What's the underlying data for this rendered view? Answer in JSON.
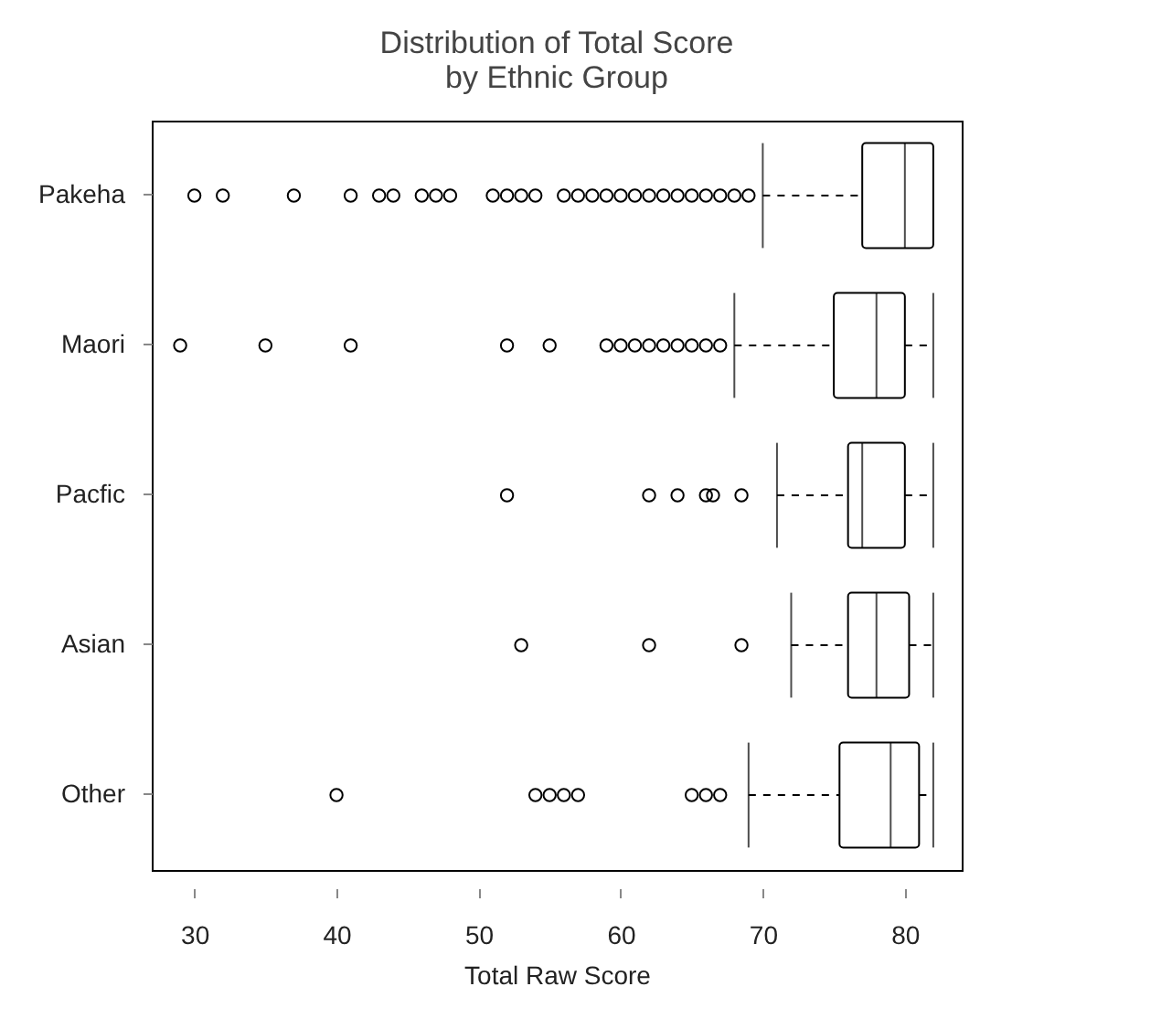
{
  "chart_data": {
    "type": "box",
    "orientation": "horizontal",
    "title": "Distribution of Total Score\nby Ethnic Group",
    "xlabel": "Total Raw Score",
    "categories": [
      "Pakeha",
      "Maori",
      "Pacfic",
      "Asian",
      "Other"
    ],
    "xlim": [
      27,
      84
    ],
    "xticks": [
      30,
      40,
      50,
      60,
      70,
      80
    ],
    "boxes": [
      {
        "low": 70,
        "q1": 77,
        "median": 80,
        "q3": 82,
        "high": 82,
        "outliers": [
          30,
          32,
          37,
          41,
          43,
          44,
          46,
          47,
          48,
          51,
          52,
          53,
          54,
          56,
          57,
          58,
          59,
          60,
          61,
          62,
          63,
          64,
          65,
          66,
          67,
          68,
          69
        ]
      },
      {
        "low": 68,
        "q1": 75,
        "median": 78,
        "q3": 80,
        "high": 82,
        "outliers": [
          29,
          35,
          41,
          52,
          55,
          59,
          60,
          61,
          62,
          63,
          64,
          65,
          66,
          67
        ]
      },
      {
        "low": 71,
        "q1": 76,
        "median": 77,
        "q3": 80,
        "high": 82,
        "outliers": [
          52,
          62,
          64,
          66,
          66.5,
          68.5
        ]
      },
      {
        "low": 72,
        "q1": 76,
        "median": 78,
        "q3": 80.3,
        "high": 82,
        "outliers": [
          53,
          62,
          68.5
        ]
      },
      {
        "low": 69,
        "q1": 75.4,
        "median": 79,
        "q3": 81,
        "high": 82,
        "outliers": [
          40,
          54,
          55,
          56,
          57,
          65,
          66,
          67
        ]
      }
    ]
  }
}
